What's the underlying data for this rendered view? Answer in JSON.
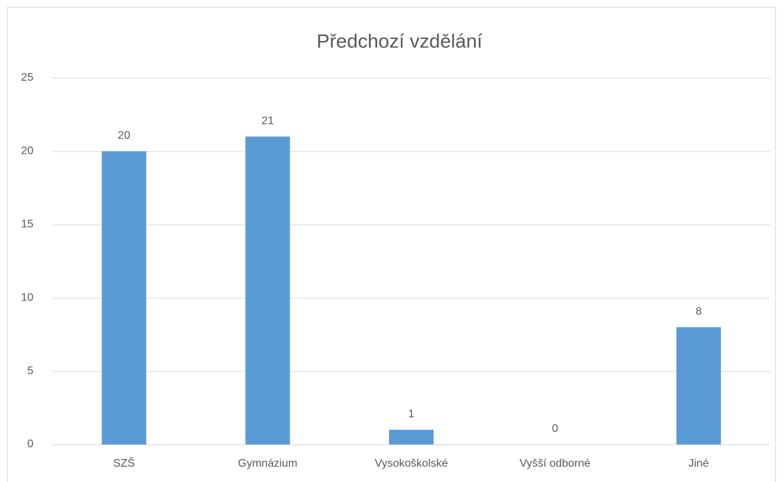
{
  "chart_data": {
    "type": "bar",
    "title": "Předchozí vzdělání",
    "categories": [
      "SZŠ",
      "Gymnázium",
      "Vysokoškolské",
      "Vyšší odborné",
      "Jiné"
    ],
    "values": [
      20,
      21,
      1,
      0,
      8
    ],
    "color": "#5b9bd5",
    "ylim": [
      0,
      25
    ],
    "yticks": [
      0,
      5,
      10,
      15,
      20,
      25
    ],
    "grid": true
  }
}
